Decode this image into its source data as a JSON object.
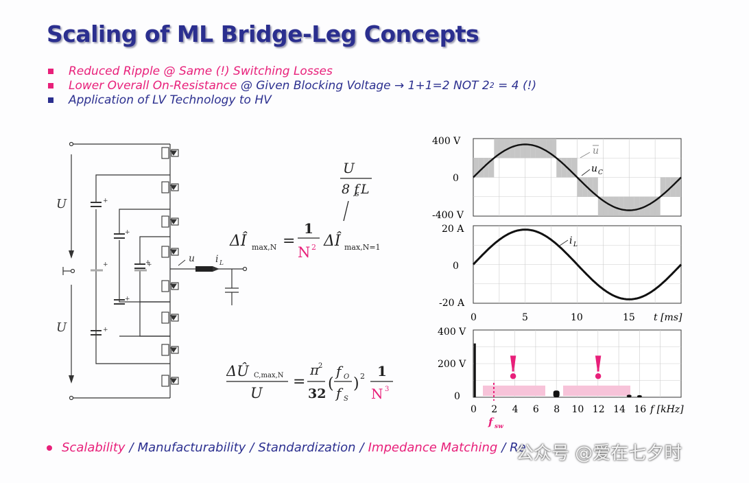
{
  "title": "Scaling of ML Bridge-Leg Concepts",
  "bullets": [
    {
      "segments": [
        {
          "text": "Reduced Ripple @ Same (!) Switching Losses",
          "color": "pink"
        }
      ],
      "marker": "pink"
    },
    {
      "segments": [
        {
          "text": "Lower Overall On-Resistance",
          "color": "pink"
        },
        {
          "text": " @ Given Blocking Voltage → 1+1=2 NOT 2",
          "color": "navy"
        },
        {
          "text": "2",
          "color": "navy",
          "sup": true
        },
        {
          "text": " = 4 (!)",
          "color": "navy"
        }
      ],
      "marker": "pink"
    },
    {
      "segments": [
        {
          "text": "Application of LV Technology to HV",
          "color": "navy"
        }
      ],
      "marker": "navy"
    }
  ],
  "circuit": {
    "label_U_top": "U",
    "label_U_bottom": "U",
    "label_u": "u",
    "label_iL": "i",
    "label_iL_sub": "L"
  },
  "formulas": {
    "f1_lhs": "ΔÎ",
    "f1_lhs_sub": "max,N",
    "f1_num": "1",
    "f1_den": "N",
    "f1_den_sup": "2",
    "f1_rhs": "ΔÎ",
    "f1_rhs_sub": "max,N=1",
    "frac_num": "U",
    "frac_den": "8 f",
    "frac_den_sub": "s",
    "frac_den_tail": "L",
    "f2_num": "ΔÛ",
    "f2_num_sub": "C,max,N",
    "f2_den": "U",
    "f2_pi": "π",
    "f2_pi_sup": "2",
    "f2_32": "32",
    "f2_fo": "f",
    "f2_fo_sub": "O",
    "f2_fs": "f",
    "f2_fs_sub": "S",
    "f2_pow": "2",
    "f2_one": "1",
    "f2_N": "N",
    "f2_N_sup": "3"
  },
  "plots": {
    "p1_ticks": [
      "400 V",
      "0",
      "-400 V"
    ],
    "p1_label_u": "u",
    "p1_label_uC": "u",
    "p1_label_uC_sub": "C",
    "p2_ticks": [
      "20 A",
      "0",
      "-20 A"
    ],
    "p2_label": "i",
    "p2_label_sub": "L",
    "time_ticks": [
      "0",
      "5",
      "10",
      "15"
    ],
    "time_unit": "t [ms]",
    "p3_ticks": [
      "400 V",
      "200 V",
      "0"
    ],
    "freq_ticks": [
      "0",
      "2",
      "4",
      "6",
      "8",
      "10",
      "12",
      "14",
      "16"
    ],
    "freq_unit": "f [kHz]",
    "exclaim": "!",
    "fsw": "f",
    "fsw_sub": "sw"
  },
  "chart_data": [
    {
      "type": "line",
      "title": "",
      "xlabel": "t [ms]",
      "ylabel": "",
      "xlim": [
        0,
        20
      ],
      "ylim": [
        -400,
        400
      ],
      "series": [
        {
          "name": "u",
          "values": "stepped"
        },
        {
          "name": "u_C",
          "amplitude": 340
        }
      ],
      "yticks": [
        "400 V",
        "0",
        "-400 V"
      ]
    },
    {
      "type": "line",
      "xlabel": "t [ms]",
      "xlim": [
        0,
        20
      ],
      "ylim": [
        -20,
        20
      ],
      "series": [
        {
          "name": "i_L",
          "amplitude": 18
        }
      ],
      "yticks": [
        "20 A",
        "0",
        "-20 A"
      ]
    },
    {
      "type": "bar",
      "xlabel": "f [kHz]",
      "xlim": [
        0,
        20
      ],
      "ylim": [
        0,
        400
      ],
      "x": [
        0.05,
        8,
        15,
        16
      ],
      "values": [
        320,
        40,
        15,
        12
      ],
      "yticks": [
        "400 V",
        "200 V",
        "0"
      ]
    }
  ],
  "bottom": [
    {
      "text": "Scalability",
      "color": "pink"
    },
    {
      "text": "/",
      "color": "navy"
    },
    {
      "text": "Manufacturability",
      "color": "navy"
    },
    {
      "text": "/",
      "color": "navy"
    },
    {
      "text": "Standardization",
      "color": "navy"
    },
    {
      "text": "/",
      "color": "navy"
    },
    {
      "text": "Impedance Matching",
      "color": "pink"
    },
    {
      "text": "/ Re",
      "color": "navy"
    }
  ],
  "watermark": "公众号 @爱在七夕时",
  "colors": {
    "navy": "#2b2f8f",
    "pink": "#e8207a"
  }
}
